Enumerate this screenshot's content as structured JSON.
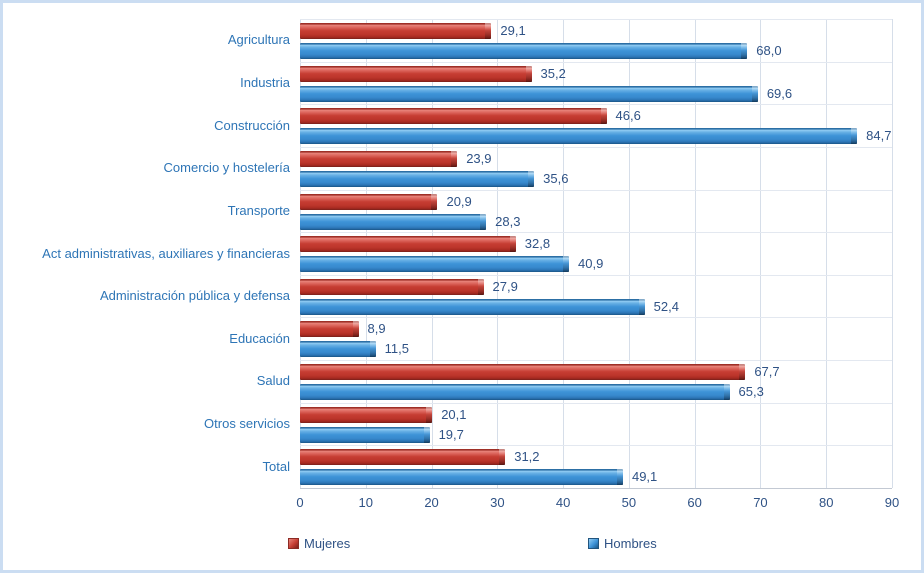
{
  "chart_data": {
    "type": "bar",
    "orientation": "horizontal",
    "title": "",
    "xlabel": "",
    "ylabel": "",
    "decimal_separator": ",",
    "categories": [
      "Agricultura",
      "Industria",
      "Construcción",
      "Comercio y hostelería",
      "Transporte",
      "Act administrativas, auxiliares y financieras",
      "Administración pública y defensa",
      "Educación",
      "Salud",
      "Otros servicios",
      "Total"
    ],
    "series": [
      {
        "name": "Mujeres",
        "color": "#C63D33",
        "values": [
          29.1,
          35.2,
          46.6,
          23.9,
          20.9,
          32.8,
          27.9,
          8.9,
          67.7,
          20.1,
          31.2
        ],
        "display_labels": [
          "29,1",
          "35,2",
          "46,6",
          "23,9",
          "20,9",
          "32,8",
          "27,9",
          "8,9",
          "67,7",
          "20,1",
          "31,2"
        ]
      },
      {
        "name": "Hombres",
        "color": "#3E93D7",
        "values": [
          68.0,
          69.6,
          84.7,
          35.6,
          28.3,
          40.9,
          52.4,
          11.5,
          65.3,
          19.7,
          49.1
        ],
        "display_labels": [
          "68,0",
          "69,6",
          "84,7",
          "35,6",
          "28,3",
          "40,9",
          "52,4",
          "11,5",
          "65,3",
          "19,7",
          "49,1"
        ]
      }
    ],
    "x_axis": {
      "min": 0,
      "max": 90,
      "tick_interval": 10,
      "tick_labels": [
        "0",
        "10",
        "20",
        "30",
        "40",
        "50",
        "60",
        "70",
        "80",
        "90"
      ]
    },
    "grid": true,
    "legend_position": "bottom"
  },
  "legend": {
    "items": [
      {
        "label": "Mujeres",
        "color": "#C63D33"
      },
      {
        "label": "Hombres",
        "color": "#3E93D7"
      }
    ]
  },
  "style_colors": {
    "category_label": "#2E75B6",
    "data_label": "#2F5285",
    "axis_tick": "#2F5285",
    "gridline": "#D6DEE9",
    "axis_line": "#C3C9D3",
    "frame_border": "#CBDDF2",
    "background": "#FFFFFF"
  }
}
